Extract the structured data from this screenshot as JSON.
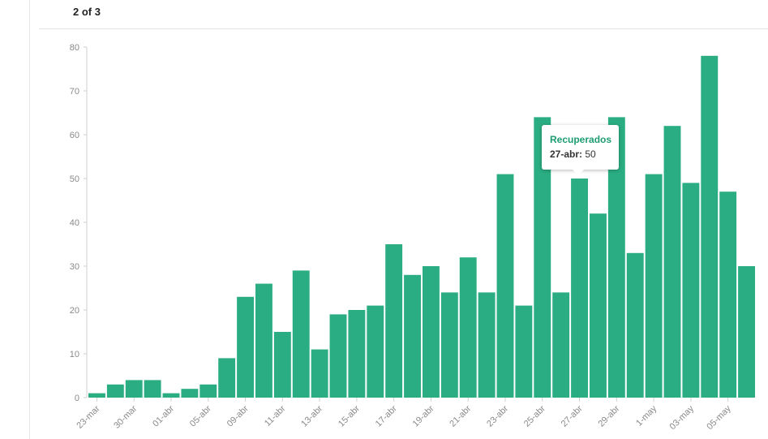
{
  "pager": {
    "label": "2 of 3"
  },
  "tooltip": {
    "series": "Recuperados",
    "date": "27-abr:",
    "value": "50"
  },
  "colors": {
    "bar": "#2aad82",
    "axis": "#cfcfcf",
    "tooltip_title": "#1e9c72"
  },
  "chart_data": {
    "type": "bar",
    "x": [
      "23-mar",
      "",
      "30-mar",
      "",
      "01-abr",
      "",
      "05-abr",
      "",
      "09-abr",
      "",
      "11-abr",
      "",
      "13-abr",
      "",
      "15-abr",
      "",
      "17-abr",
      "",
      "19-abr",
      "",
      "21-abr",
      "",
      "23-abr",
      "",
      "25-abr",
      "",
      "27-abr",
      "",
      "29-abr",
      "",
      "1-may",
      "",
      "03-may",
      "",
      "05-may",
      ""
    ],
    "series": [
      {
        "name": "Recuperados",
        "values": [
          1,
          3,
          4,
          4,
          1,
          2,
          3,
          9,
          23,
          26,
          15,
          29,
          11,
          19,
          20,
          21,
          35,
          28,
          30,
          24,
          32,
          24,
          51,
          21,
          64,
          24,
          50,
          42,
          64,
          33,
          51,
          62,
          49,
          78,
          47,
          30
        ]
      }
    ],
    "ylim": [
      0,
      80
    ],
    "yticks": [
      "0",
      "10",
      "20",
      "30",
      "40",
      "50",
      "60",
      "70",
      "80"
    ],
    "xtick_labels": [
      "23-mar",
      "30-mar",
      "01-abr",
      "05-abr",
      "09-abr",
      "11-abr",
      "13-abr",
      "15-abr",
      "17-abr",
      "19-abr",
      "21-abr",
      "23-abr",
      "25-abr",
      "27-abr",
      "29-abr",
      "1-may",
      "03-may",
      "05-may"
    ],
    "grid": false
  }
}
